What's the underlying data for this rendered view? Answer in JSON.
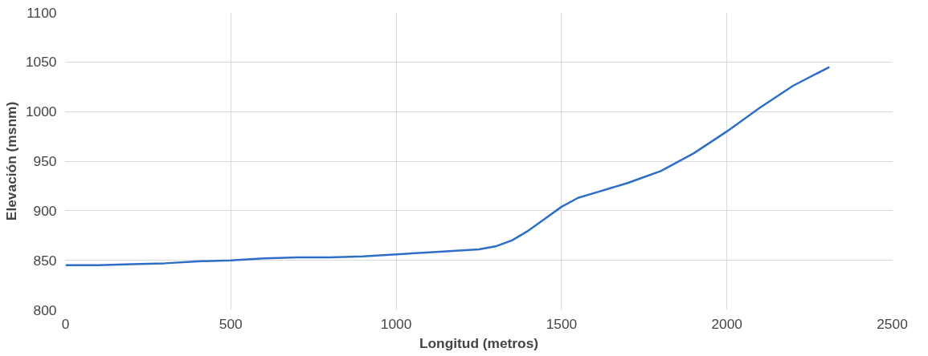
{
  "chart_data": {
    "type": "line",
    "xlabel": "Longitud (metros)",
    "ylabel": "Elevación (msnm)",
    "x": [
      0,
      100,
      200,
      300,
      400,
      500,
      600,
      700,
      800,
      900,
      1000,
      1100,
      1200,
      1250,
      1300,
      1350,
      1400,
      1450,
      1500,
      1550,
      1600,
      1700,
      1750,
      1800,
      1900,
      2000,
      2100,
      2200,
      2310
    ],
    "series": [
      {
        "color": "#2e6ec6",
        "values": [
          845,
          845,
          846,
          847,
          849,
          850,
          852,
          853,
          853,
          854,
          856,
          858,
          860,
          861,
          864,
          870,
          880,
          892,
          904,
          913,
          918,
          928,
          934,
          940,
          958,
          980,
          1004,
          1026,
          1045
        ]
      }
    ],
    "xlim": [
      0,
      2500
    ],
    "ylim": [
      800,
      1100
    ],
    "xticks": [
      0,
      500,
      1000,
      1500,
      2000,
      2500
    ],
    "yticks": [
      800,
      850,
      900,
      950,
      1000,
      1050,
      1100
    ],
    "grid": true,
    "marker": "none",
    "line_style": "solid"
  }
}
